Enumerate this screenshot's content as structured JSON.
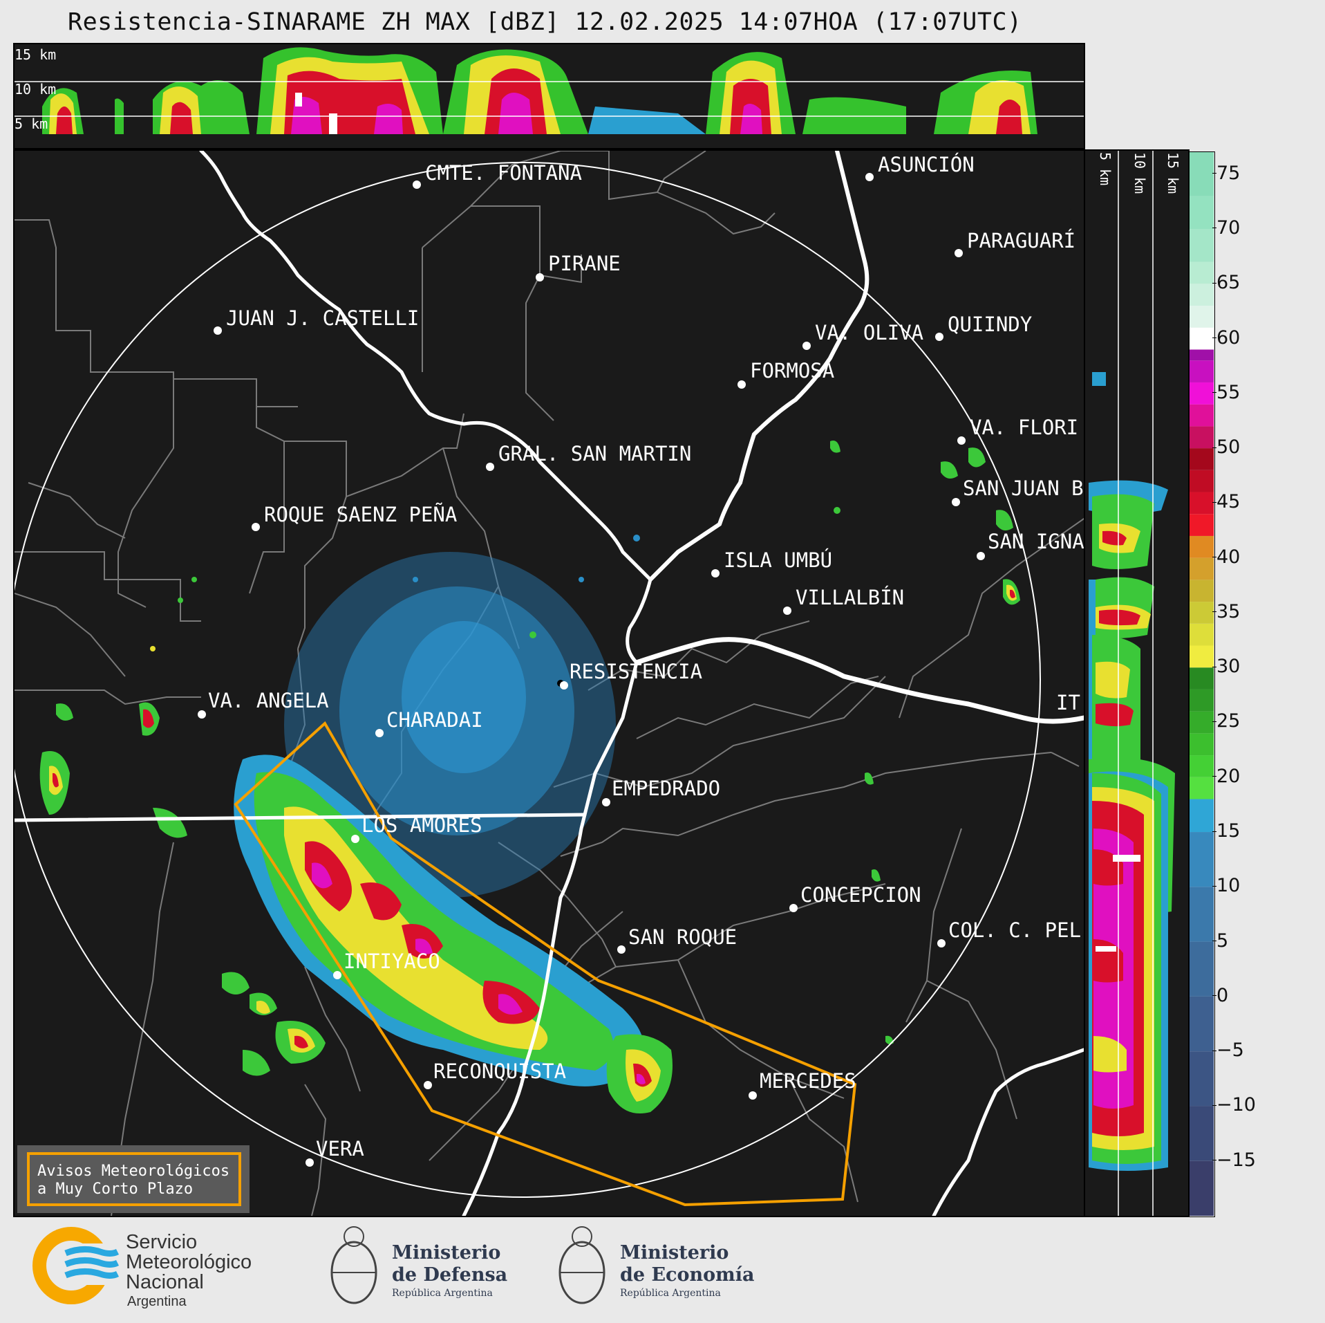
{
  "title": "Resistencia-SINARAME ZH MAX [dBZ] 12.02.2025 14:07HOA (17:07UTC)",
  "top_xsection": {
    "height_labels": [
      "15 km",
      "10 km",
      "5 km"
    ]
  },
  "side_xsection": {
    "height_labels": [
      "5 km",
      "10 km",
      "15 km"
    ]
  },
  "colorbar": {
    "ticks": [
      "75",
      "70",
      "65",
      "60",
      "55",
      "50",
      "45",
      "40",
      "35",
      "30",
      "25",
      "20",
      "15",
      "10",
      "5",
      "0",
      "−5",
      "−10",
      "−15"
    ],
    "range_dbz": [
      -20,
      77
    ]
  },
  "cities": [
    {
      "name": "CMTE. FONTANA"
    },
    {
      "name": "ASUNCIÓN"
    },
    {
      "name": "PIRANE"
    },
    {
      "name": "PARAGUARÍ"
    },
    {
      "name": "JUAN J. CASTELLI"
    },
    {
      "name": "VA. OLIVA"
    },
    {
      "name": "QUIINDY"
    },
    {
      "name": "FORMOSA"
    },
    {
      "name": "VA. FLORI"
    },
    {
      "name": "GRAL. SAN MARTIN"
    },
    {
      "name": "SAN JUAN B"
    },
    {
      "name": "ROQUE SAENZ PEÑA"
    },
    {
      "name": "SAN IGNA"
    },
    {
      "name": "ISLA UMBÚ"
    },
    {
      "name": "VILLALBÍN"
    },
    {
      "name": "RESISTENCIA"
    },
    {
      "name": "VA. ANGELA"
    },
    {
      "name": "CHARADAI"
    },
    {
      "name": "EMPEDRADO"
    },
    {
      "name": "LOS AMORES"
    },
    {
      "name": "CONCEPCION"
    },
    {
      "name": "SAN ROQUE"
    },
    {
      "name": "COL. C. PEL"
    },
    {
      "name": "INTIYACO"
    },
    {
      "name": "RECONQUISTA"
    },
    {
      "name": "MERCEDES"
    },
    {
      "name": "VERA"
    },
    {
      "name": "IT"
    }
  ],
  "warning_box": {
    "line1": "Avisos Meteorológicos",
    "line2": "a Muy Corto Plazo"
  },
  "logos": {
    "smn_line1": "Servicio",
    "smn_line2": "Meteorológico",
    "smn_line3": "Nacional",
    "smn_line4": "Argentina",
    "defensa_line1": "Ministerio",
    "defensa_line2": "de Defensa",
    "defensa_line3": "República Argentina",
    "economia_line1": "Ministerio",
    "economia_line2": "de Economía",
    "economia_line3": "República Argentina"
  },
  "colors": {
    "warning_polygon": "#f5a000",
    "background": "#1a1a1a",
    "smn_blue": "#29a8e0",
    "smn_orange": "#f7a800"
  }
}
